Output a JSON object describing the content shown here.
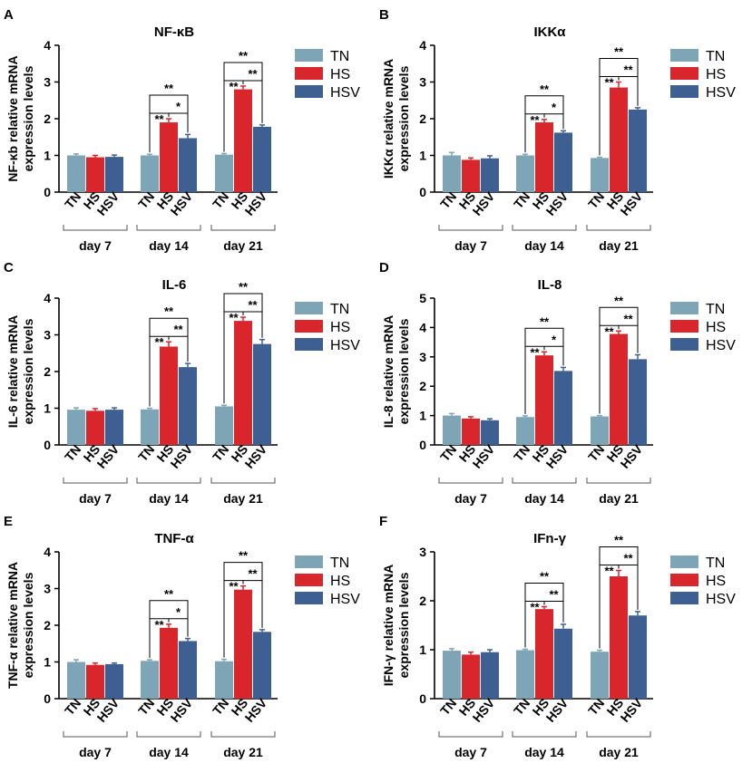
{
  "groups": [
    "TN",
    "HS",
    "HSV"
  ],
  "group_colors": [
    "#7EA5B5",
    "#D9262C",
    "#3E5F92"
  ],
  "days": [
    "day 7",
    "day 14",
    "day 21"
  ],
  "chart_data": [
    {
      "type": "bar",
      "letter": "A",
      "title": "NF-κB",
      "ylabel": [
        "NF-κb relative mRNA",
        "expression levels"
      ],
      "ylim": [
        0,
        4
      ],
      "yticks": [
        "0",
        "1",
        "2",
        "3",
        "4"
      ],
      "series": [
        {
          "name": "TN",
          "values": [
            1.0,
            1.0,
            1.02
          ],
          "errors": [
            0.04,
            0.03,
            0.03
          ]
        },
        {
          "name": "HS",
          "values": [
            0.95,
            1.9,
            2.8
          ],
          "errors": [
            0.05,
            0.1,
            0.09
          ]
        },
        {
          "name": "HSV",
          "values": [
            0.96,
            1.47,
            1.78
          ],
          "errors": [
            0.05,
            0.1,
            0.05
          ]
        }
      ],
      "significance": [
        [
          "**",
          "*",
          "**"
        ],
        [
          "**",
          "**",
          "**"
        ]
      ]
    },
    {
      "type": "bar",
      "letter": "B",
      "title": "IKKα",
      "ylabel": [
        "IKKα relative mRNA",
        "expression levels"
      ],
      "ylim": [
        0,
        4
      ],
      "yticks": [
        "0",
        "1",
        "2",
        "3",
        "4"
      ],
      "series": [
        {
          "name": "TN",
          "values": [
            1.0,
            1.0,
            0.93
          ],
          "errors": [
            0.08,
            0.03,
            0.02
          ]
        },
        {
          "name": "HS",
          "values": [
            0.88,
            1.9,
            2.85
          ],
          "errors": [
            0.05,
            0.08,
            0.15
          ]
        },
        {
          "name": "HSV",
          "values": [
            0.92,
            1.62,
            2.25
          ],
          "errors": [
            0.07,
            0.05,
            0.05
          ]
        }
      ],
      "significance": [
        [
          "**",
          "*",
          "**"
        ],
        [
          "**",
          "**",
          "**"
        ]
      ]
    },
    {
      "type": "bar",
      "letter": "C",
      "title": "IL-6",
      "ylabel": [
        "IL-6 relative mRNA",
        "expression levels"
      ],
      "ylim": [
        0,
        4
      ],
      "yticks": [
        "0",
        "1",
        "2",
        "3",
        "4"
      ],
      "series": [
        {
          "name": "TN",
          "values": [
            0.96,
            0.97,
            1.05
          ],
          "errors": [
            0.05,
            0.03,
            0.03
          ]
        },
        {
          "name": "HS",
          "values": [
            0.93,
            2.68,
            3.38
          ],
          "errors": [
            0.06,
            0.13,
            0.1
          ]
        },
        {
          "name": "HSV",
          "values": [
            0.96,
            2.12,
            2.75
          ],
          "errors": [
            0.05,
            0.1,
            0.12
          ]
        }
      ],
      "significance": [
        [
          "**",
          "**",
          "**"
        ],
        [
          "**",
          "**",
          "**"
        ]
      ]
    },
    {
      "type": "bar",
      "letter": "D",
      "title": "IL-8",
      "ylabel": [
        "IL-8 relative mRNA",
        "expression levels"
      ],
      "ylim": [
        0,
        5
      ],
      "yticks": [
        "0",
        "1",
        "2",
        "3",
        "4",
        "5"
      ],
      "series": [
        {
          "name": "TN",
          "values": [
            1.0,
            0.95,
            0.97
          ],
          "errors": [
            0.07,
            0.04,
            0.03
          ]
        },
        {
          "name": "HS",
          "values": [
            0.9,
            3.05,
            3.78
          ],
          "errors": [
            0.06,
            0.12,
            0.1
          ]
        },
        {
          "name": "HSV",
          "values": [
            0.84,
            2.52,
            2.92
          ],
          "errors": [
            0.05,
            0.12,
            0.15
          ]
        }
      ],
      "significance": [
        [
          "**",
          "*",
          "**"
        ],
        [
          "**",
          "**",
          "**"
        ]
      ]
    },
    {
      "type": "bar",
      "letter": "E",
      "title": "TNF-α",
      "ylabel": [
        "TNF-α relative mRNA",
        "expression levels"
      ],
      "ylim": [
        0,
        4
      ],
      "yticks": [
        "0",
        "1",
        "2",
        "3",
        "4"
      ],
      "series": [
        {
          "name": "TN",
          "values": [
            1.0,
            1.03,
            1.02
          ],
          "errors": [
            0.06,
            0.03,
            0.05
          ]
        },
        {
          "name": "HS",
          "values": [
            0.92,
            1.93,
            2.97
          ],
          "errors": [
            0.05,
            0.1,
            0.1
          ]
        },
        {
          "name": "HSV",
          "values": [
            0.94,
            1.57,
            1.82
          ],
          "errors": [
            0.03,
            0.07,
            0.06
          ]
        }
      ],
      "significance": [
        [
          "**",
          "*",
          "**"
        ],
        [
          "**",
          "**",
          "**"
        ]
      ]
    },
    {
      "type": "bar",
      "letter": "F",
      "title": "IFn-γ",
      "ylabel": [
        "IFN-γ relative mRNA",
        "expression levels"
      ],
      "ylim": [
        0,
        3
      ],
      "yticks": [
        "0",
        "1",
        "2",
        "3"
      ],
      "series": [
        {
          "name": "TN",
          "values": [
            0.98,
            0.99,
            0.96
          ],
          "errors": [
            0.04,
            0.02,
            0.03
          ]
        },
        {
          "name": "HS",
          "values": [
            0.9,
            1.83,
            2.5
          ],
          "errors": [
            0.05,
            0.05,
            0.12
          ]
        },
        {
          "name": "HSV",
          "values": [
            0.95,
            1.43,
            1.7
          ],
          "errors": [
            0.05,
            0.09,
            0.08
          ]
        }
      ],
      "significance": [
        [
          "**",
          "**",
          "**"
        ],
        [
          "**",
          "**",
          "**"
        ]
      ]
    }
  ]
}
